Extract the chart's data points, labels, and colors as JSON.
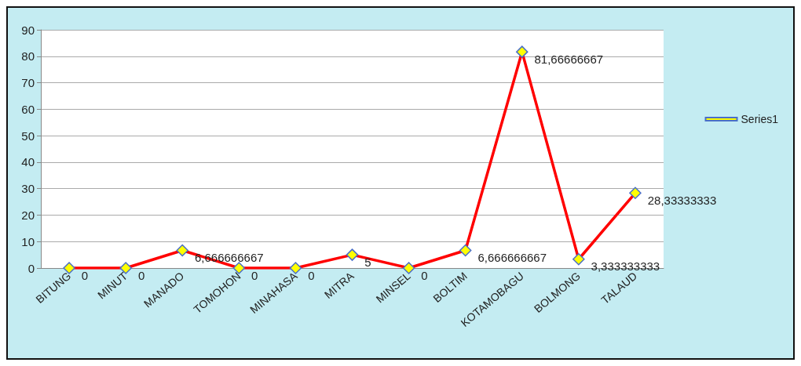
{
  "chart_data": {
    "type": "line",
    "categories": [
      "BITUNG",
      "MINUT",
      "MANADO",
      "TOMOHON",
      "MINAHASA",
      "MITRA",
      "MINSEL",
      "BOLTIM",
      "KOTAMOBAGU",
      "BOLMONG",
      "TALAUD"
    ],
    "series": [
      {
        "name": "Series1",
        "color": "#ff0000",
        "values": [
          0,
          0,
          6.666666667,
          0,
          0,
          5,
          0,
          6.666666667,
          81.66666667,
          3.333333333,
          28.33333333
        ],
        "value_labels": [
          "0",
          "0",
          "6,666666667",
          "0",
          "0",
          "5",
          "0",
          "6,666666667",
          "81,66666667",
          "3,333333333",
          "28,33333333"
        ]
      }
    ],
    "ylim": [
      0,
      90
    ],
    "yticks": [
      0,
      10,
      20,
      30,
      40,
      50,
      60,
      70,
      80,
      90
    ],
    "grid": "y",
    "legend": "right",
    "marker": "diamond",
    "line_style": "solid"
  }
}
